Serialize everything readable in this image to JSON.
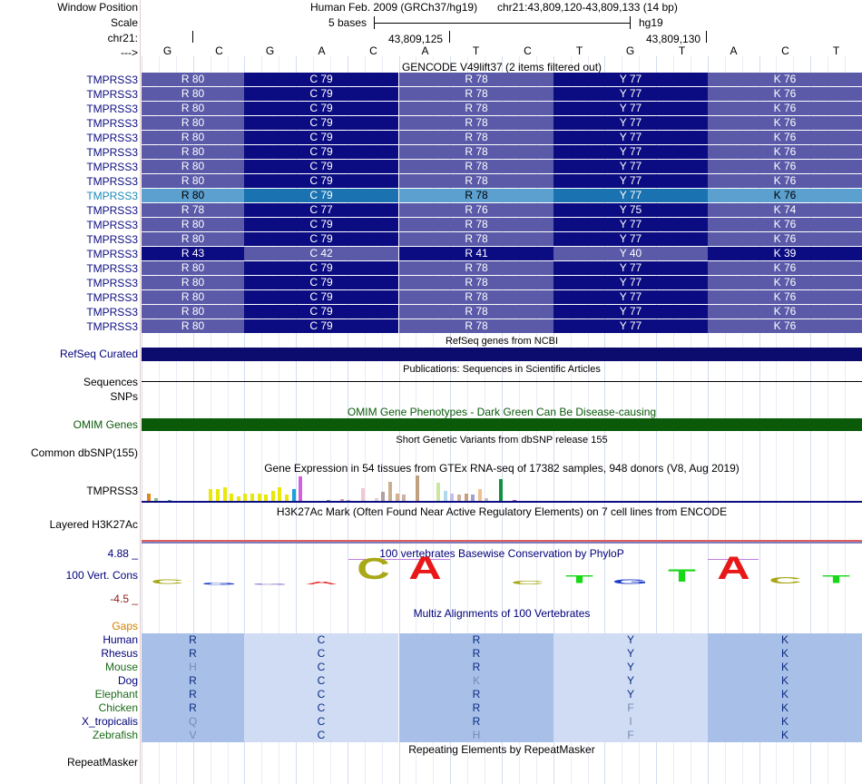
{
  "labels": {
    "window_position": "Window Position",
    "scale": "Scale",
    "chrom": "chr21:",
    "arrow": "--->",
    "refseq": "RefSeq Curated",
    "sequences": "Sequences",
    "snps": "SNPs",
    "omim": "OMIM Genes",
    "dbsnp": "Common dbSNP(155)",
    "gtex": "TMPRSS3",
    "h3k27ac": "Layered H3K27Ac",
    "cons_max": "4.88 _",
    "cons_name": "100 Vert. Cons",
    "cons_min": "-4.5 _",
    "gaps": "Gaps",
    "repeatmasker": "RepeatMasker"
  },
  "header": {
    "assembly": "Human Feb. 2009 (GRCh37/hg19)",
    "position": "chr21:43,809,120-43,809,133 (14 bp)",
    "scale_text": "5 bases",
    "scale_db": "hg19",
    "coord1": "43,809,125",
    "coord2": "43,809,130"
  },
  "bases": [
    "G",
    "C",
    "G",
    "A",
    "C",
    "A",
    "T",
    "C",
    "T",
    "G",
    "T",
    "A",
    "C",
    "T"
  ],
  "gencode": {
    "title": "GENCODE V49lift37 (2 items filtered out)",
    "rows": [
      {
        "name": "TMPRSS3",
        "style": "n",
        "codons": [
          "R 80",
          "C 79",
          "R 78",
          "Y 77",
          "K 76"
        ]
      },
      {
        "name": "TMPRSS3",
        "style": "n",
        "codons": [
          "R 80",
          "C 79",
          "R 78",
          "Y 77",
          "K 76"
        ]
      },
      {
        "name": "TMPRSS3",
        "style": "n",
        "codons": [
          "R 80",
          "C 79",
          "R 78",
          "Y 77",
          "K 76"
        ]
      },
      {
        "name": "TMPRSS3",
        "style": "n",
        "codons": [
          "R 80",
          "C 79",
          "R 78",
          "Y 77",
          "K 76"
        ]
      },
      {
        "name": "TMPRSS3",
        "style": "n",
        "codons": [
          "R 80",
          "C 79",
          "R 78",
          "Y 77",
          "K 76"
        ]
      },
      {
        "name": "TMPRSS3",
        "style": "n",
        "codons": [
          "R 80",
          "C 79",
          "R 78",
          "Y 77",
          "K 76"
        ]
      },
      {
        "name": "TMPRSS3",
        "style": "n",
        "codons": [
          "R 80",
          "C 79",
          "R 78",
          "Y 77",
          "K 76"
        ]
      },
      {
        "name": "TMPRSS3",
        "style": "n",
        "codons": [
          "R 80",
          "C 79",
          "R 78",
          "Y 77",
          "K 76"
        ]
      },
      {
        "name": "TMPRSS3",
        "style": "h",
        "codons": [
          "R 80",
          "C 79",
          "R 78",
          "Y 77",
          "K 76"
        ]
      },
      {
        "name": "TMPRSS3",
        "style": "n",
        "codons": [
          "R 78",
          "C 77",
          "R 76",
          "Y 75",
          "K 74"
        ]
      },
      {
        "name": "TMPRSS3",
        "style": "n",
        "codons": [
          "R 80",
          "C 79",
          "R 78",
          "Y 77",
          "K 76"
        ]
      },
      {
        "name": "TMPRSS3",
        "style": "n",
        "codons": [
          "R 80",
          "C 79",
          "R 78",
          "Y 77",
          "K 76"
        ]
      },
      {
        "name": "TMPRSS3",
        "style": "d",
        "codons": [
          "R 43",
          "C 42",
          "R 41",
          "Y 40",
          "K 39"
        ]
      },
      {
        "name": "TMPRSS3",
        "style": "n",
        "codons": [
          "R 80",
          "C 79",
          "R 78",
          "Y 77",
          "K 76"
        ]
      },
      {
        "name": "TMPRSS3",
        "style": "n",
        "codons": [
          "R 80",
          "C 79",
          "R 78",
          "Y 77",
          "K 76"
        ]
      },
      {
        "name": "TMPRSS3",
        "style": "n",
        "codons": [
          "R 80",
          "C 79",
          "R 78",
          "Y 77",
          "K 76"
        ]
      },
      {
        "name": "TMPRSS3",
        "style": "n",
        "codons": [
          "R 80",
          "C 79",
          "R 78",
          "Y 77",
          "K 76"
        ]
      },
      {
        "name": "TMPRSS3",
        "style": "n",
        "codons": [
          "R 80",
          "C 79",
          "R 78",
          "Y 77",
          "K 76"
        ]
      }
    ]
  },
  "tracks": {
    "refseq_title": "RefSeq genes from NCBI",
    "pubs_title": "Publications: Sequences in Scientific Articles",
    "omim_title": "OMIM Gene Phenotypes - Dark Green Can Be Disease-causing",
    "dbsnp_title": "Short Genetic Variants from dbSNP release 155",
    "gtex_title": "Gene Expression in 54 tissues from GTEx RNA-seq of 17382 samples, 948 donors (V8, Aug 2019)",
    "h3k27ac_title": "H3K27Ac Mark (Often Found Near Active Regulatory Elements) on 7 cell lines from ENCODE",
    "cons_title": "100 vertebrates Basewise Conservation by PhyloP",
    "multiz_title": "Multiz Alignments of 100 Vertebrates",
    "repeat_title": "Repeating Elements by RepeatMasker"
  },
  "gtex_bars": [
    {
      "v": 0.3,
      "c": "#e0861b"
    },
    {
      "v": 0.12,
      "c": "#8fbd8b"
    },
    {
      "v": 0.0,
      "c": "#ffffff"
    },
    {
      "v": 0.05,
      "c": "#5c9ab0"
    },
    {
      "v": 0.0,
      "c": "#ffffff"
    },
    {
      "v": 0.0,
      "c": "#ffffff"
    },
    {
      "v": 0.0,
      "c": "#ffffff"
    },
    {
      "v": 0.0,
      "c": "#ffffff"
    },
    {
      "v": 0.0,
      "c": "#ffffff"
    },
    {
      "v": 0.45,
      "c": "#e8e80a"
    },
    {
      "v": 0.45,
      "c": "#e8e80a"
    },
    {
      "v": 0.52,
      "c": "#e8e80a"
    },
    {
      "v": 0.28,
      "c": "#e8e80a"
    },
    {
      "v": 0.18,
      "c": "#e8e80a"
    },
    {
      "v": 0.28,
      "c": "#e8e80a"
    },
    {
      "v": 0.28,
      "c": "#e8e80a"
    },
    {
      "v": 0.3,
      "c": "#e8e80a"
    },
    {
      "v": 0.24,
      "c": "#e8e80a"
    },
    {
      "v": 0.38,
      "c": "#e8e80a"
    },
    {
      "v": 0.55,
      "c": "#e8e80a"
    },
    {
      "v": 0.25,
      "c": "#e8e80a"
    },
    {
      "v": 0.45,
      "c": "#1aa0d8"
    },
    {
      "v": 0.95,
      "c": "#d060e0"
    },
    {
      "v": 0.0,
      "c": "#ffffff"
    },
    {
      "v": 0.0,
      "c": "#ffffff"
    },
    {
      "v": 0.0,
      "c": "#ffffff"
    },
    {
      "v": 0.05,
      "c": "#8090a0"
    },
    {
      "v": 0.0,
      "c": "#ffffff"
    },
    {
      "v": 0.08,
      "c": "#d8a0a0"
    },
    {
      "v": 0.05,
      "c": "#c0a0c0"
    },
    {
      "v": 0.0,
      "c": "#ffffff"
    },
    {
      "v": 0.5,
      "c": "#f0c8d0"
    },
    {
      "v": 0.0,
      "c": "#ffffff"
    },
    {
      "v": 0.12,
      "c": "#e8d0d0"
    },
    {
      "v": 0.35,
      "c": "#b0a0a0"
    },
    {
      "v": 0.75,
      "c": "#c8b090"
    },
    {
      "v": 0.3,
      "c": "#d0b090"
    },
    {
      "v": 0.25,
      "c": "#d0b0a0"
    },
    {
      "v": 0.0,
      "c": "#ffffff"
    },
    {
      "v": 1.0,
      "c": "#c0a080"
    },
    {
      "v": 0.0,
      "c": "#ffffff"
    },
    {
      "v": 0.0,
      "c": "#ffffff"
    },
    {
      "v": 0.72,
      "c": "#c8e8a0"
    },
    {
      "v": 0.4,
      "c": "#b0d8f0"
    },
    {
      "v": 0.3,
      "c": "#c0c0e8"
    },
    {
      "v": 0.25,
      "c": "#d0b0a0"
    },
    {
      "v": 0.3,
      "c": "#c8a080"
    },
    {
      "v": 0.25,
      "c": "#a0a0d0"
    },
    {
      "v": 0.45,
      "c": "#f0c090"
    },
    {
      "v": 0.12,
      "c": "#c0c0c0"
    },
    {
      "v": 0.0,
      "c": "#ffffff"
    },
    {
      "v": 0.85,
      "c": "#109040"
    },
    {
      "v": 0.0,
      "c": "#ffffff"
    },
    {
      "v": 0.05,
      "c": "#b040b0"
    }
  ],
  "cons_logo": [
    {
      "b": "C",
      "h": 0.22,
      "c": "#a8a818"
    },
    {
      "b": "G",
      "h": 0.1,
      "c": "#1c3cc8"
    },
    {
      "b": "G",
      "h": 0.05,
      "c": "#7a5ac0"
    },
    {
      "b": "A",
      "h": 0.12,
      "c": "#e83030"
    },
    {
      "b": "C",
      "h": 0.95,
      "c": "#a8a818"
    },
    {
      "b": "A",
      "h": 1.0,
      "c": "#e81818"
    },
    {
      "b": "T",
      "h": 0.0,
      "c": "#ffffff"
    },
    {
      "b": "C",
      "h": 0.15,
      "c": "#a8a818"
    },
    {
      "b": "T",
      "h": 0.35,
      "c": "#18d818"
    },
    {
      "b": "G",
      "h": 0.2,
      "c": "#1c3cc8"
    },
    {
      "b": "T",
      "h": 0.55,
      "c": "#18d818"
    },
    {
      "b": "A",
      "h": 1.0,
      "c": "#e81818"
    },
    {
      "b": "C",
      "h": 0.3,
      "c": "#a8a818"
    },
    {
      "b": "T",
      "h": 0.35,
      "c": "#18d818"
    }
  ],
  "multiz": {
    "gaps_label": "Gaps",
    "species": [
      {
        "name": "Human",
        "color": "#00007a",
        "aa": [
          "R",
          "C",
          "R",
          "Y",
          "K"
        ],
        "dim": [
          false,
          false,
          false,
          false,
          false
        ]
      },
      {
        "name": "Rhesus",
        "color": "#00007a",
        "aa": [
          "R",
          "C",
          "R",
          "Y",
          "K"
        ],
        "dim": [
          false,
          false,
          false,
          false,
          false
        ]
      },
      {
        "name": "Mouse",
        "color": "#1a6a1a",
        "aa": [
          "H",
          "C",
          "R",
          "Y",
          "K"
        ],
        "dim": [
          true,
          false,
          false,
          false,
          false
        ]
      },
      {
        "name": "Dog",
        "color": "#00007a",
        "aa": [
          "R",
          "C",
          "K",
          "Y",
          "K"
        ],
        "dim": [
          false,
          false,
          true,
          false,
          false
        ]
      },
      {
        "name": "Elephant",
        "color": "#1a6a1a",
        "aa": [
          "R",
          "C",
          "R",
          "Y",
          "K"
        ],
        "dim": [
          false,
          false,
          false,
          false,
          false
        ]
      },
      {
        "name": "Chicken",
        "color": "#1a6a1a",
        "aa": [
          "R",
          "C",
          "R",
          "F",
          "K"
        ],
        "dim": [
          false,
          false,
          false,
          true,
          false
        ]
      },
      {
        "name": "X_tropicalis",
        "color": "#00007a",
        "aa": [
          "Q",
          "C",
          "R",
          "I",
          "K"
        ],
        "dim": [
          true,
          false,
          false,
          true,
          false
        ]
      },
      {
        "name": "Zebrafish",
        "color": "#1a6a1a",
        "aa": [
          "V",
          "C",
          "H",
          "F",
          "K"
        ],
        "dim": [
          true,
          false,
          true,
          true,
          false
        ]
      }
    ]
  },
  "colors": {
    "gencode_dark": "#0c0c82",
    "gencode_light": "#5a5aa8",
    "gencode_hl_dark": "#1a72b0",
    "gencode_hl_light": "#5ca0d0",
    "refseq": "#0c0c6e",
    "omim": "#0a5a0a",
    "multiz_dark": "#a8c0e8",
    "multiz_light": "#cfdcf4"
  }
}
